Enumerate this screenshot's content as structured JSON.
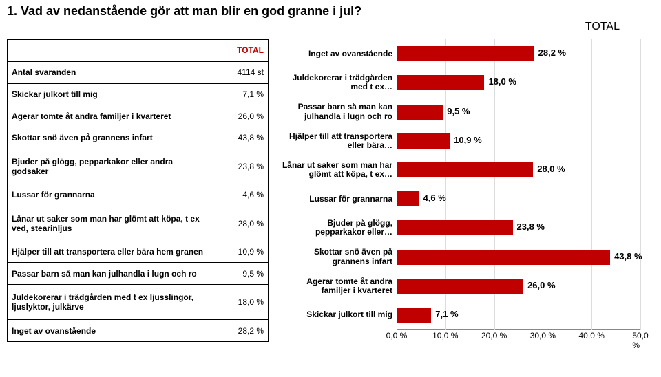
{
  "title": "1. Vad av nedanstående gör att man blir en god granne i jul?",
  "totalTop": "TOTAL",
  "table": {
    "header": [
      "",
      "TOTAL"
    ],
    "rows": [
      {
        "label": "Antal svaranden",
        "value": "4114 st"
      },
      {
        "label": "Skickar julkort till mig",
        "value": "7,1 %"
      },
      {
        "label": "Agerar tomte åt andra familjer i kvarteret",
        "value": "26,0 %"
      },
      {
        "label": "Skottar snö även på grannens infart",
        "value": "43,8 %"
      },
      {
        "label": "Bjuder på glögg, pepparkakor eller andra godsaker",
        "value": "23,8 %"
      },
      {
        "label": "Lussar för grannarna",
        "value": "4,6 %"
      },
      {
        "label": "Lånar ut saker som man har glömt att köpa, t ex ved, stearinljus",
        "value": "28,0 %"
      },
      {
        "label": "Hjälper till att transportera eller bära hem granen",
        "value": "10,9 %"
      },
      {
        "label": "Passar barn så man kan julhandla i lugn och ro",
        "value": "9,5 %"
      },
      {
        "label": "Juldekorerar i trädgården med t ex ljusslingor, ljuslyktor, julkärve",
        "value": "18,0 %"
      },
      {
        "label": "Inget av ovanstående",
        "value": "28,2 %"
      }
    ]
  },
  "chart": {
    "type": "bar-horizontal",
    "bar_color": "#c00000",
    "grid_color": "#ddd",
    "axis_color": "#888",
    "xmin": 0,
    "xmax": 50,
    "xtick_step": 10,
    "xticks": [
      "0,0 %",
      "10,0 %",
      "20,0 %",
      "30,0 %",
      "40,0 %",
      "50,0 %"
    ],
    "bars": [
      {
        "label": "Inget av ovanstående",
        "value": 28.2,
        "text": "28,2 %"
      },
      {
        "label": "Juldekorerar i trädgården med t ex…",
        "value": 18.0,
        "text": "18,0 %"
      },
      {
        "label": "Passar barn så man kan julhandla i lugn och ro",
        "value": 9.5,
        "text": "9,5 %"
      },
      {
        "label": "Hjälper till att transportera eller bära…",
        "value": 10.9,
        "text": "10,9 %"
      },
      {
        "label": "Lånar ut saker som man har glömt att köpa, t ex…",
        "value": 28.0,
        "text": "28,0 %"
      },
      {
        "label": "Lussar för grannarna",
        "value": 4.6,
        "text": "4,6 %"
      },
      {
        "label": "Bjuder på glögg, pepparkakor eller…",
        "value": 23.8,
        "text": "23,8 %"
      },
      {
        "label": "Skottar snö även på grannens infart",
        "value": 43.8,
        "text": "43,8 %"
      },
      {
        "label": "Agerar tomte åt andra familjer i kvarteret",
        "value": 26.0,
        "text": "26,0 %"
      },
      {
        "label": "Skickar julkort till mig",
        "value": 7.1,
        "text": "7,1 %"
      }
    ]
  }
}
